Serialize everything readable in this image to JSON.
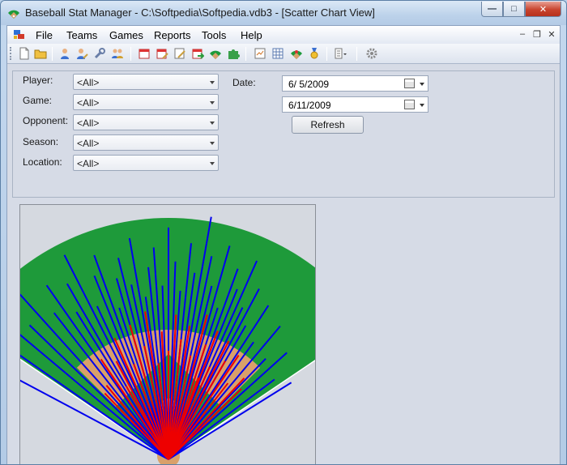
{
  "window": {
    "title": "Baseball Stat Manager - C:\\Softpedia\\Softpedia.vdb3 - [Scatter Chart View]",
    "controls": [
      "minimize",
      "maximize",
      "close"
    ],
    "minimize_glyph": "—",
    "maximize_glyph": "□",
    "close_glyph": "✕"
  },
  "menu": {
    "items": [
      "File",
      "Teams",
      "Games",
      "Reports",
      "Tools",
      "Help"
    ],
    "mdi_glyphs": [
      "–",
      "❐",
      "✕"
    ]
  },
  "toolbar": {
    "icons": [
      "new-icon",
      "open-icon",
      "player-icon",
      "player-edit-icon",
      "wrench-icon",
      "players-icon",
      "calendar-icon",
      "calendar-edit-icon",
      "edit-icon",
      "calendar-go-icon",
      "field-icon",
      "puzzle-icon",
      "report-icon",
      "grid-icon",
      "field-edit-icon",
      "medal-icon",
      "view-dropdown-icon",
      "settings-icon"
    ]
  },
  "filters": {
    "player_label": "Player:",
    "player_value": "<All>",
    "game_label": "Game:",
    "game_value": "<All>",
    "opponent_label": "Opponent:",
    "opponent_value": "<All>",
    "season_label": "Season:",
    "season_value": "<All>",
    "location_label": "Location:",
    "location_value": "<All>",
    "date_label": "Date:",
    "date_from": "6/ 5/2009",
    "date_to": "6/11/2009",
    "refresh_label": "Refresh"
  },
  "colors": {
    "grass": "#1e9a3a",
    "dirt": "#d9a06a",
    "hit_blue": "#0000ee",
    "hit_red": "#ee0000"
  },
  "chart_data": {
    "type": "scatter",
    "series": [
      {
        "values": [
          [
            -62,
            0.95
          ],
          [
            -55,
            0.9
          ],
          [
            -50,
            0.86
          ],
          [
            -46,
            0.8
          ],
          [
            -42,
            0.92
          ],
          [
            -38,
            0.77
          ],
          [
            -35,
            0.88
          ],
          [
            -32,
            0.72
          ],
          [
            -30,
            0.84
          ],
          [
            -27,
            0.95
          ],
          [
            -25,
            0.7
          ],
          [
            -22,
            0.82
          ],
          [
            -20,
            0.9
          ],
          [
            -18,
            0.66
          ],
          [
            -16,
            0.78
          ],
          [
            -14,
            0.86
          ],
          [
            -12,
            0.74
          ],
          [
            -10,
            0.93
          ],
          [
            -8,
            0.68
          ],
          [
            -6,
            0.8
          ],
          [
            -4,
            0.88
          ],
          [
            -2,
            0.72
          ],
          [
            0,
            0.96
          ],
          [
            2,
            0.82
          ],
          [
            4,
            0.7
          ],
          [
            6,
            0.9
          ],
          [
            8,
            0.78
          ],
          [
            10,
            1.02
          ],
          [
            12,
            0.86
          ],
          [
            14,
            0.74
          ],
          [
            16,
            0.92
          ],
          [
            18,
            0.66
          ],
          [
            20,
            0.84
          ],
          [
            22,
            0.76
          ],
          [
            24,
            0.9
          ],
          [
            26,
            0.7
          ],
          [
            28,
            0.8
          ],
          [
            30,
            0.64
          ],
          [
            33,
            0.76
          ],
          [
            36,
            0.6
          ],
          [
            40,
            0.72
          ],
          [
            44,
            0.58
          ],
          [
            48,
            0.66
          ],
          [
            53,
            0.55
          ],
          [
            58,
            0.6
          ]
        ]
      },
      {
        "values": [
          [
            -40,
            0.4
          ],
          [
            -34,
            0.5
          ],
          [
            -28,
            0.46
          ],
          [
            -24,
            0.55
          ],
          [
            -20,
            0.42
          ],
          [
            -16,
            0.58
          ],
          [
            -12,
            0.48
          ],
          [
            -9,
            0.62
          ],
          [
            -6,
            0.4
          ],
          [
            -3,
            0.53
          ],
          [
            0,
            0.45
          ],
          [
            3,
            0.6
          ],
          [
            6,
            0.5
          ],
          [
            9,
            0.56
          ],
          [
            12,
            0.44
          ],
          [
            15,
            0.62
          ],
          [
            18,
            0.5
          ],
          [
            21,
            0.57
          ],
          [
            24,
            0.42
          ],
          [
            27,
            0.55
          ],
          [
            30,
            0.47
          ],
          [
            34,
            0.52
          ],
          [
            38,
            0.4
          ],
          [
            43,
            0.46
          ],
          [
            -44,
            0.38
          ],
          [
            -30,
            0.35
          ],
          [
            20,
            0.36
          ],
          [
            46,
            0.42
          ]
        ]
      }
    ]
  }
}
